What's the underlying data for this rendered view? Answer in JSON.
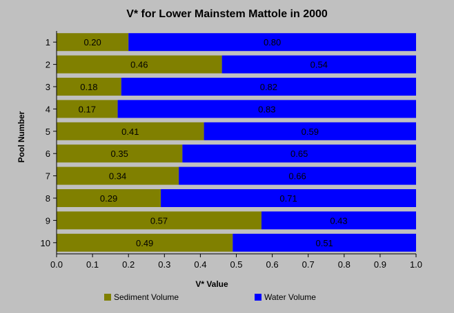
{
  "colors": {
    "background": "#c0c0c0",
    "sediment": "#808000",
    "water": "#0000ff"
  },
  "chart_data": {
    "type": "bar",
    "orientation": "horizontal",
    "stacked": true,
    "title": "V* for Lower Mainstem Mattole in 2000",
    "xlabel": "V* Value",
    "ylabel": "Pool Number",
    "xlim": [
      0,
      1
    ],
    "x_ticks": [
      "0.0",
      "0.1",
      "0.2",
      "0.3",
      "0.4",
      "0.5",
      "0.6",
      "0.7",
      "0.8",
      "0.9",
      "1.0"
    ],
    "categories": [
      "1",
      "2",
      "3",
      "4",
      "5",
      "6",
      "7",
      "8",
      "9",
      "10"
    ],
    "legend_position": "bottom",
    "series": [
      {
        "name": "Sediment Volume",
        "color": "#808000",
        "values": [
          0.2,
          0.46,
          0.18,
          0.17,
          0.41,
          0.35,
          0.34,
          0.29,
          0.57,
          0.49
        ],
        "labels": [
          "0.20",
          "0.46",
          "0.18",
          "0.17",
          "0.41",
          "0.35",
          "0.34",
          "0.29",
          "0.57",
          "0.49"
        ]
      },
      {
        "name": "Water Volume",
        "color": "#0000ff",
        "values": [
          0.8,
          0.54,
          0.82,
          0.83,
          0.59,
          0.65,
          0.66,
          0.71,
          0.43,
          0.51
        ],
        "labels": [
          "0.80",
          "0.54",
          "0.82",
          "0.83",
          "0.59",
          "0.65",
          "0.66",
          "0.71",
          "0.43",
          "0.51"
        ]
      }
    ]
  }
}
